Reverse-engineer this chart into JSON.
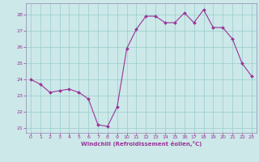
{
  "x": [
    0,
    1,
    2,
    3,
    4,
    5,
    6,
    7,
    8,
    9,
    10,
    11,
    12,
    13,
    14,
    15,
    16,
    17,
    18,
    19,
    20,
    21,
    22,
    23
  ],
  "y": [
    24.0,
    23.7,
    23.2,
    23.3,
    23.4,
    23.2,
    22.8,
    21.2,
    21.1,
    22.3,
    25.9,
    27.1,
    27.9,
    27.9,
    27.5,
    27.5,
    28.1,
    27.5,
    28.3,
    27.2,
    27.2,
    26.5,
    25.0,
    24.2
  ],
  "line_color": "#993399",
  "marker_color": "#993399",
  "bg_color": "#cce8e8",
  "grid_color": "#99cccc",
  "xlabel": "Windchill (Refroidissement éolien,°C)",
  "xlim": [
    -0.5,
    23.5
  ],
  "ylim": [
    20.7,
    28.7
  ],
  "yticks": [
    21,
    22,
    23,
    24,
    25,
    26,
    27,
    28
  ],
  "xticks": [
    0,
    1,
    2,
    3,
    4,
    5,
    6,
    7,
    8,
    9,
    10,
    11,
    12,
    13,
    14,
    15,
    16,
    17,
    18,
    19,
    20,
    21,
    22,
    23
  ],
  "spine_color": "#9999bb",
  "tick_color": "#993399",
  "font_color": "#993399"
}
